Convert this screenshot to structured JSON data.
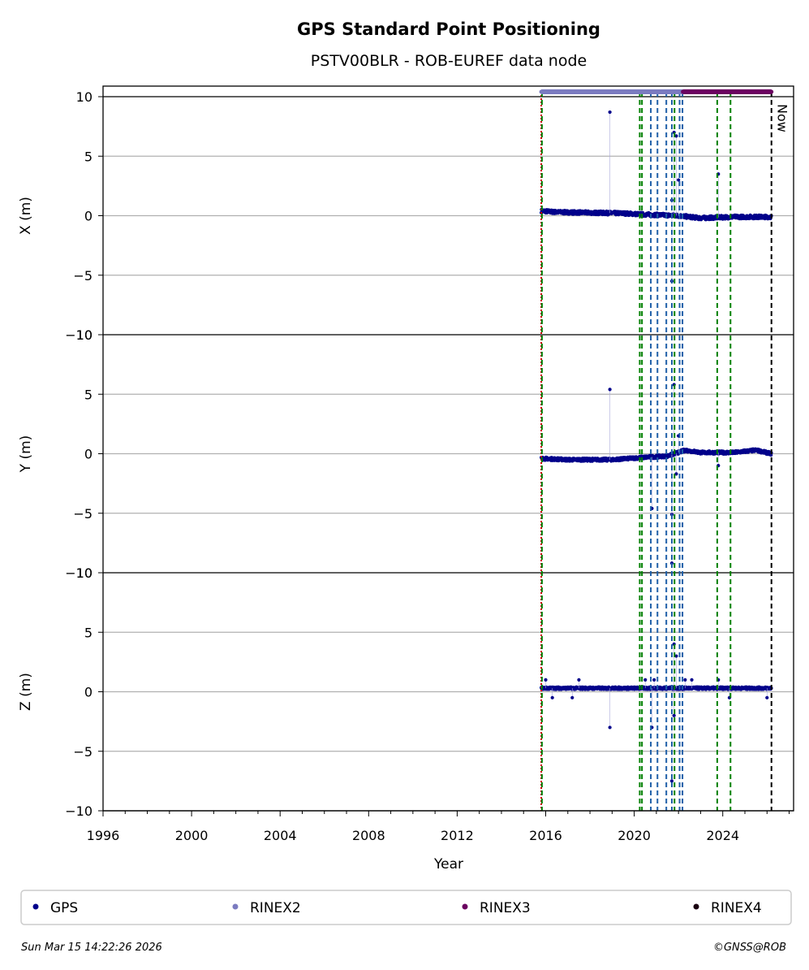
{
  "chart_data": {
    "type": "scatter",
    "title": "GPS Standard Point Positioning",
    "subtitle": "PSTV00BLR - ROB-EUREF data node",
    "xlabel": "Year",
    "xlim": [
      1996,
      2027.2
    ],
    "x_ticks": [
      "1996",
      "2000",
      "2004",
      "2008",
      "2012",
      "2016",
      "2020",
      "2024"
    ],
    "ylim": [
      -10,
      10
    ],
    "y_ticks": [
      "−10",
      "−5",
      "0",
      "5",
      "10"
    ],
    "grid": "horizontal",
    "now_label": "Now",
    "now_x": 2026.2,
    "panels": [
      {
        "ylabel": "X (m)",
        "base_series": {
          "name": "GPS",
          "start": 2015.8,
          "end": 2026.2,
          "segments": [
            [
              2015.8,
              0.4
            ],
            [
              2016.5,
              0.3
            ],
            [
              2019.5,
              0.2
            ],
            [
              2020.5,
              0.1
            ],
            [
              2022.0,
              0.0
            ],
            [
              2023.0,
              -0.2
            ],
            [
              2024.5,
              -0.1
            ],
            [
              2026.2,
              -0.1
            ]
          ],
          "spread": 0.3
        },
        "outliers": [
          [
            2018.9,
            8.7
          ],
          [
            2021.8,
            7.0
          ],
          [
            2021.9,
            6.7
          ],
          [
            2022.0,
            3.0
          ],
          [
            2021.7,
            1.3
          ],
          [
            2021.7,
            -5.5
          ],
          [
            2023.8,
            3.5
          ]
        ]
      },
      {
        "ylabel": "Y (m)",
        "base_series": {
          "name": "GPS",
          "start": 2015.8,
          "end": 2026.2,
          "segments": [
            [
              2015.8,
              -0.4
            ],
            [
              2017.0,
              -0.5
            ],
            [
              2019.0,
              -0.5
            ],
            [
              2020.5,
              -0.3
            ],
            [
              2021.5,
              -0.2
            ],
            [
              2022.3,
              0.3
            ],
            [
              2023.0,
              0.1
            ],
            [
              2024.5,
              0.1
            ],
            [
              2025.5,
              0.3
            ],
            [
              2026.2,
              0.0
            ]
          ],
          "spread": 0.25
        },
        "outliers": [
          [
            2018.9,
            5.4
          ],
          [
            2021.8,
            5.8
          ],
          [
            2022.0,
            1.5
          ],
          [
            2020.8,
            -4.6
          ],
          [
            2021.7,
            -5.1
          ],
          [
            2021.9,
            -1.7
          ],
          [
            2021.7,
            -9.2
          ],
          [
            2023.8,
            -1.0
          ]
        ]
      },
      {
        "ylabel": "Z (m)",
        "base_series": {
          "name": "GPS",
          "start": 2015.8,
          "end": 2026.2,
          "segments": [
            [
              2015.8,
              0.3
            ],
            [
              2026.2,
              0.3
            ]
          ],
          "spread": 0.2
        },
        "outliers": [
          [
            2016.0,
            1.0
          ],
          [
            2017.5,
            1.0
          ],
          [
            2020.5,
            1.0
          ],
          [
            2020.9,
            1.0
          ],
          [
            2022.3,
            1.0
          ],
          [
            2022.6,
            1.0
          ],
          [
            2023.8,
            1.0
          ],
          [
            2018.9,
            -3.0
          ],
          [
            2020.8,
            -3.0
          ],
          [
            2021.8,
            4.0
          ],
          [
            2021.9,
            3.0
          ],
          [
            2021.8,
            -2.0
          ],
          [
            2021.7,
            -7.5
          ],
          [
            2016.3,
            -0.5
          ],
          [
            2017.2,
            -0.5
          ],
          [
            2024.3,
            -0.5
          ],
          [
            2026.0,
            -0.5
          ]
        ]
      }
    ],
    "event_lines": [
      {
        "x": 2015.8,
        "color": "#cc0000",
        "style": "dotted"
      },
      {
        "x": 2015.83,
        "color": "#008000",
        "style": "dashed"
      },
      {
        "x": 2020.25,
        "color": "#008000",
        "style": "dashed"
      },
      {
        "x": 2020.35,
        "color": "#008000",
        "style": "dashed"
      },
      {
        "x": 2020.75,
        "color": "#1f5fa8",
        "style": "dashed"
      },
      {
        "x": 2021.05,
        "color": "#1f5fa8",
        "style": "dashed"
      },
      {
        "x": 2021.45,
        "color": "#1f5fa8",
        "style": "dashed"
      },
      {
        "x": 2021.7,
        "color": "#1f5fa8",
        "style": "dashed"
      },
      {
        "x": 2021.82,
        "color": "#008000",
        "style": "dashed"
      },
      {
        "x": 2022.05,
        "color": "#1f5fa8",
        "style": "dashed"
      },
      {
        "x": 2022.18,
        "color": "#1f5fa8",
        "style": "dashed"
      },
      {
        "x": 2023.75,
        "color": "#008000",
        "style": "dashed"
      },
      {
        "x": 2024.35,
        "color": "#008000",
        "style": "dashed"
      },
      {
        "x": 2026.2,
        "color": "#000000",
        "style": "dashed"
      }
    ],
    "availability": [
      {
        "name": "RINEX2",
        "start": 2015.8,
        "end": 2022.2,
        "color": "#7b7bc0"
      },
      {
        "name": "RINEX3",
        "start": 2022.2,
        "end": 2026.2,
        "color": "#6b0060"
      }
    ],
    "legend": {
      "placement": "bottom",
      "entries": [
        {
          "name": "GPS",
          "color": "#00008b"
        },
        {
          "name": "RINEX2",
          "color": "#7b7bc0"
        },
        {
          "name": "RINEX3",
          "color": "#6b0060"
        },
        {
          "name": "RINEX4",
          "color": "#1a0010"
        }
      ]
    }
  },
  "footer": {
    "timestamp": "Sun Mar 15 14:22:26 2026",
    "credit": "©GNSS@ROB"
  }
}
